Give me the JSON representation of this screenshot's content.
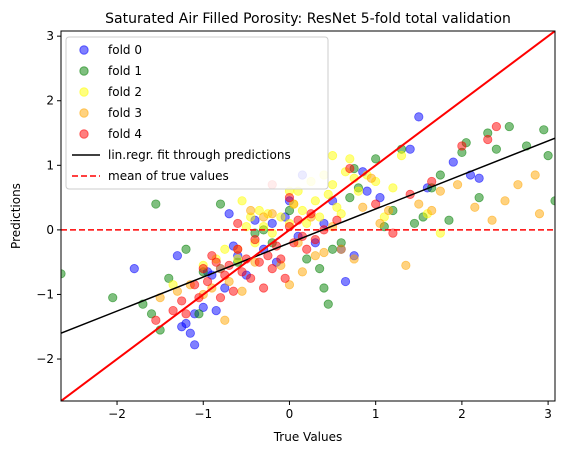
{
  "chart_data": {
    "type": "scatter",
    "title": "Saturated Air Filled Porosity: ResNet 5-fold total validation",
    "xlabel": "True Values",
    "ylabel": "Predictions",
    "xlim": [
      -2.65,
      3.08
    ],
    "ylim": [
      -2.65,
      3.08
    ],
    "xticks": [
      -2,
      -1,
      0,
      1,
      2,
      3
    ],
    "yticks": [
      -2,
      -1,
      0,
      1,
      2,
      3
    ],
    "tick_labels": [
      "−2",
      "−1",
      "0",
      "1",
      "2",
      "3"
    ],
    "grid": false,
    "legend_position": "top-left",
    "series": [
      {
        "name": "fold 0",
        "color": "#0000ff",
        "points": [
          [
            -1.8,
            -0.6
          ],
          [
            -1.25,
            -1.5
          ],
          [
            -1.2,
            -1.45
          ],
          [
            -1.15,
            -1.6
          ],
          [
            -1.1,
            -1.78
          ],
          [
            -1.1,
            -1.3
          ],
          [
            -1.0,
            -1.2
          ],
          [
            -0.9,
            -0.7
          ],
          [
            -0.85,
            -1.25
          ],
          [
            -0.8,
            -0.6
          ],
          [
            -0.75,
            -0.9
          ],
          [
            -0.7,
            0.25
          ],
          [
            -0.6,
            -0.4
          ],
          [
            -0.5,
            -0.7
          ],
          [
            -0.4,
            0.15
          ],
          [
            -0.3,
            -0.3
          ],
          [
            -0.2,
            0.1
          ],
          [
            -0.15,
            -0.5
          ],
          [
            -0.05,
            0.2
          ],
          [
            0.0,
            0.45
          ],
          [
            0.1,
            -0.1
          ],
          [
            0.15,
            0.85
          ],
          [
            0.3,
            -0.2
          ],
          [
            0.4,
            0.1
          ],
          [
            0.6,
            -0.3
          ],
          [
            0.65,
            -0.8
          ],
          [
            0.75,
            -0.4
          ],
          [
            0.9,
            0.6
          ],
          [
            1.05,
            0.5
          ],
          [
            1.4,
            1.25
          ],
          [
            1.5,
            1.75
          ],
          [
            1.6,
            0.65
          ],
          [
            1.9,
            1.05
          ],
          [
            2.1,
            0.85
          ],
          [
            2.2,
            0.8
          ],
          [
            -1.3,
            -0.4
          ],
          [
            -0.95,
            -0.65
          ],
          [
            -0.65,
            -0.25
          ],
          [
            0.5,
            0.45
          ],
          [
            0.85,
            0.9
          ]
        ]
      },
      {
        "name": "fold 1",
        "color": "#008000",
        "points": [
          [
            -2.65,
            -0.68
          ],
          [
            -2.05,
            -1.05
          ],
          [
            -1.7,
            -1.15
          ],
          [
            -1.6,
            -1.3
          ],
          [
            -1.55,
            0.4
          ],
          [
            -1.5,
            -1.55
          ],
          [
            -1.4,
            -0.75
          ],
          [
            -1.2,
            -0.3
          ],
          [
            -1.0,
            -0.65
          ],
          [
            -0.8,
            0.4
          ],
          [
            -0.6,
            -0.5
          ],
          [
            -0.4,
            -0.05
          ],
          [
            -0.2,
            -0.2
          ],
          [
            0.0,
            0.3
          ],
          [
            0.2,
            -0.45
          ],
          [
            0.35,
            -0.6
          ],
          [
            0.4,
            -0.9
          ],
          [
            0.5,
            -0.3
          ],
          [
            0.6,
            -0.2
          ],
          [
            0.7,
            0.5
          ],
          [
            0.75,
            0.95
          ],
          [
            0.8,
            0.65
          ],
          [
            1.0,
            1.1
          ],
          [
            1.1,
            0.05
          ],
          [
            1.2,
            0.3
          ],
          [
            1.3,
            1.25
          ],
          [
            1.45,
            0.1
          ],
          [
            1.65,
            0.65
          ],
          [
            1.75,
            0.85
          ],
          [
            1.85,
            0.15
          ],
          [
            2.0,
            1.2
          ],
          [
            2.05,
            1.35
          ],
          [
            2.2,
            0.5
          ],
          [
            2.3,
            1.5
          ],
          [
            2.4,
            1.25
          ],
          [
            2.55,
            1.6
          ],
          [
            2.75,
            1.3
          ],
          [
            2.95,
            1.55
          ],
          [
            3.0,
            1.15
          ],
          [
            3.08,
            0.45
          ],
          [
            -0.3,
            0.0
          ],
          [
            0.45,
            -1.15
          ],
          [
            1.55,
            0.2
          ],
          [
            -1.05,
            -1.3
          ]
        ]
      },
      {
        "name": "fold 2",
        "color": "#ffff00",
        "points": [
          [
            -1.35,
            -0.85
          ],
          [
            -1.0,
            -0.55
          ],
          [
            -0.85,
            -0.45
          ],
          [
            -0.75,
            -0.3
          ],
          [
            -0.6,
            -0.45
          ],
          [
            -0.5,
            0.05
          ],
          [
            -0.45,
            0.2
          ],
          [
            -0.4,
            -0.2
          ],
          [
            -0.35,
            0.3
          ],
          [
            -0.3,
            0.05
          ],
          [
            -0.25,
            0.25
          ],
          [
            -0.2,
            -0.05
          ],
          [
            -0.1,
            0.2
          ],
          [
            0.0,
            0.1
          ],
          [
            0.05,
            0.4
          ],
          [
            0.1,
            0.6
          ],
          [
            0.15,
            0.3
          ],
          [
            0.2,
            0.1
          ],
          [
            0.25,
            0.75
          ],
          [
            0.3,
            0.45
          ],
          [
            0.35,
            0.2
          ],
          [
            0.4,
            0.85
          ],
          [
            0.45,
            0.55
          ],
          [
            0.5,
            0.7
          ],
          [
            0.55,
            0.35
          ],
          [
            0.6,
            0.25
          ],
          [
            0.65,
            0.9
          ],
          [
            0.7,
            1.1
          ],
          [
            0.75,
            0.8
          ],
          [
            0.8,
            0.6
          ],
          [
            0.9,
            0.85
          ],
          [
            1.0,
            0.75
          ],
          [
            1.1,
            0.2
          ],
          [
            1.2,
            0.65
          ],
          [
            1.3,
            1.15
          ],
          [
            1.6,
            0.25
          ],
          [
            1.75,
            -0.05
          ],
          [
            0.0,
            0.6
          ],
          [
            0.5,
            1.15
          ],
          [
            -0.55,
            0.45
          ]
        ]
      },
      {
        "name": "fold 3",
        "color": "#ffa500",
        "points": [
          [
            -1.3,
            -0.95
          ],
          [
            -1.15,
            -0.85
          ],
          [
            -1.0,
            -1.0
          ],
          [
            -0.9,
            -0.9
          ],
          [
            -0.8,
            -0.6
          ],
          [
            -0.75,
            -1.4
          ],
          [
            -0.7,
            -0.8
          ],
          [
            -0.6,
            -0.3
          ],
          [
            -0.55,
            -0.95
          ],
          [
            -0.45,
            0.3
          ],
          [
            -0.4,
            -0.5
          ],
          [
            -0.3,
            0.2
          ],
          [
            -0.2,
            0.25
          ],
          [
            -0.1,
            -0.55
          ],
          [
            0.0,
            -0.85
          ],
          [
            0.05,
            0.4
          ],
          [
            0.1,
            -0.2
          ],
          [
            0.15,
            -0.65
          ],
          [
            0.25,
            0.2
          ],
          [
            0.3,
            -0.4
          ],
          [
            0.5,
            0.05
          ],
          [
            0.6,
            -0.3
          ],
          [
            0.75,
            -0.45
          ],
          [
            0.85,
            0.35
          ],
          [
            0.95,
            0.8
          ],
          [
            1.05,
            0.1
          ],
          [
            1.15,
            0.3
          ],
          [
            1.35,
            -0.55
          ],
          [
            1.5,
            0.4
          ],
          [
            1.65,
            0.3
          ],
          [
            1.75,
            0.6
          ],
          [
            1.95,
            0.7
          ],
          [
            2.15,
            0.35
          ],
          [
            2.35,
            0.15
          ],
          [
            2.5,
            0.45
          ],
          [
            2.65,
            0.7
          ],
          [
            2.85,
            0.85
          ],
          [
            2.9,
            0.25
          ],
          [
            -1.5,
            -1.05
          ],
          [
            0.4,
            -0.35
          ]
        ]
      },
      {
        "name": "fold 4",
        "color": "#ff0000",
        "points": [
          [
            -1.55,
            -1.4
          ],
          [
            -1.35,
            -1.25
          ],
          [
            -1.25,
            -1.1
          ],
          [
            -1.2,
            -1.3
          ],
          [
            -1.1,
            -0.85
          ],
          [
            -1.05,
            -1.05
          ],
          [
            -1.0,
            -0.6
          ],
          [
            -0.95,
            -0.8
          ],
          [
            -0.9,
            -0.4
          ],
          [
            -0.85,
            -0.5
          ],
          [
            -0.8,
            -1.05
          ],
          [
            -0.75,
            -0.7
          ],
          [
            -0.7,
            -0.55
          ],
          [
            -0.65,
            -0.95
          ],
          [
            -0.6,
            -0.3
          ],
          [
            -0.55,
            -0.65
          ],
          [
            -0.5,
            -0.45
          ],
          [
            -0.45,
            -0.75
          ],
          [
            -0.4,
            -0.15
          ],
          [
            -0.35,
            -0.5
          ],
          [
            -0.3,
            -0.9
          ],
          [
            -0.25,
            -0.4
          ],
          [
            -0.2,
            -0.6
          ],
          [
            -0.15,
            -0.25
          ],
          [
            -0.1,
            -0.45
          ],
          [
            -0.05,
            -0.75
          ],
          [
            0.0,
            0.05
          ],
          [
            0.05,
            -0.2
          ],
          [
            0.1,
            0.15
          ],
          [
            0.15,
            -0.1
          ],
          [
            0.2,
            -0.3
          ],
          [
            0.25,
            0.25
          ],
          [
            0.3,
            -0.15
          ],
          [
            0.4,
            0.0
          ],
          [
            0.55,
            0.15
          ],
          [
            0.7,
            0.95
          ],
          [
            1.0,
            0.4
          ],
          [
            1.2,
            -0.05
          ],
          [
            1.4,
            0.55
          ],
          [
            1.65,
            0.75
          ],
          [
            2.0,
            1.3
          ],
          [
            2.3,
            1.4
          ],
          [
            2.4,
            1.6
          ],
          [
            -0.6,
            0.1
          ],
          [
            -0.2,
            0.7
          ],
          [
            0.0,
            0.5
          ]
        ]
      }
    ],
    "regression_line": {
      "name": "lin.regr. fit through predictions",
      "color": "#000000",
      "x": [
        -2.65,
        3.08
      ],
      "y": [
        -1.6,
        1.42
      ]
    },
    "identity_line": {
      "color": "#ff0000",
      "x": [
        -2.65,
        3.08
      ],
      "y": [
        -2.65,
        3.08
      ]
    },
    "mean_line": {
      "name": "mean of true values",
      "color": "#ff0000",
      "y": 0.0
    }
  }
}
